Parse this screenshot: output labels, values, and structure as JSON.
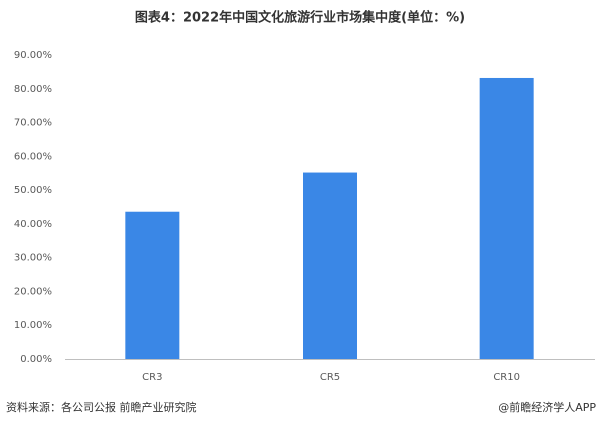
{
  "chart_data": {
    "type": "bar",
    "title": "图表4：2022年中国文化旅游行业市场集中度(单位：%)",
    "categories": [
      "CR3",
      "CR5",
      "CR10"
    ],
    "values": [
      43.6,
      55.2,
      83.2
    ],
    "color": "#3a87e6",
    "ylim": [
      0,
      90
    ],
    "yticks": [
      {
        "value": 0,
        "label": "0.00%"
      },
      {
        "value": 10,
        "label": "10.00%"
      },
      {
        "value": 20,
        "label": "20.00%"
      },
      {
        "value": 30,
        "label": "30.00%"
      },
      {
        "value": 40,
        "label": "40.00%"
      },
      {
        "value": 50,
        "label": "50.00%"
      },
      {
        "value": 60,
        "label": "60.00%"
      },
      {
        "value": 70,
        "label": "70.00%"
      },
      {
        "value": 80,
        "label": "80.00%"
      },
      {
        "value": 90,
        "label": "90.00%"
      }
    ],
    "grid": false,
    "source": "资料来源：各公司公报 前瞻产业研究院",
    "credit": "@前瞻经济学人APP"
  }
}
